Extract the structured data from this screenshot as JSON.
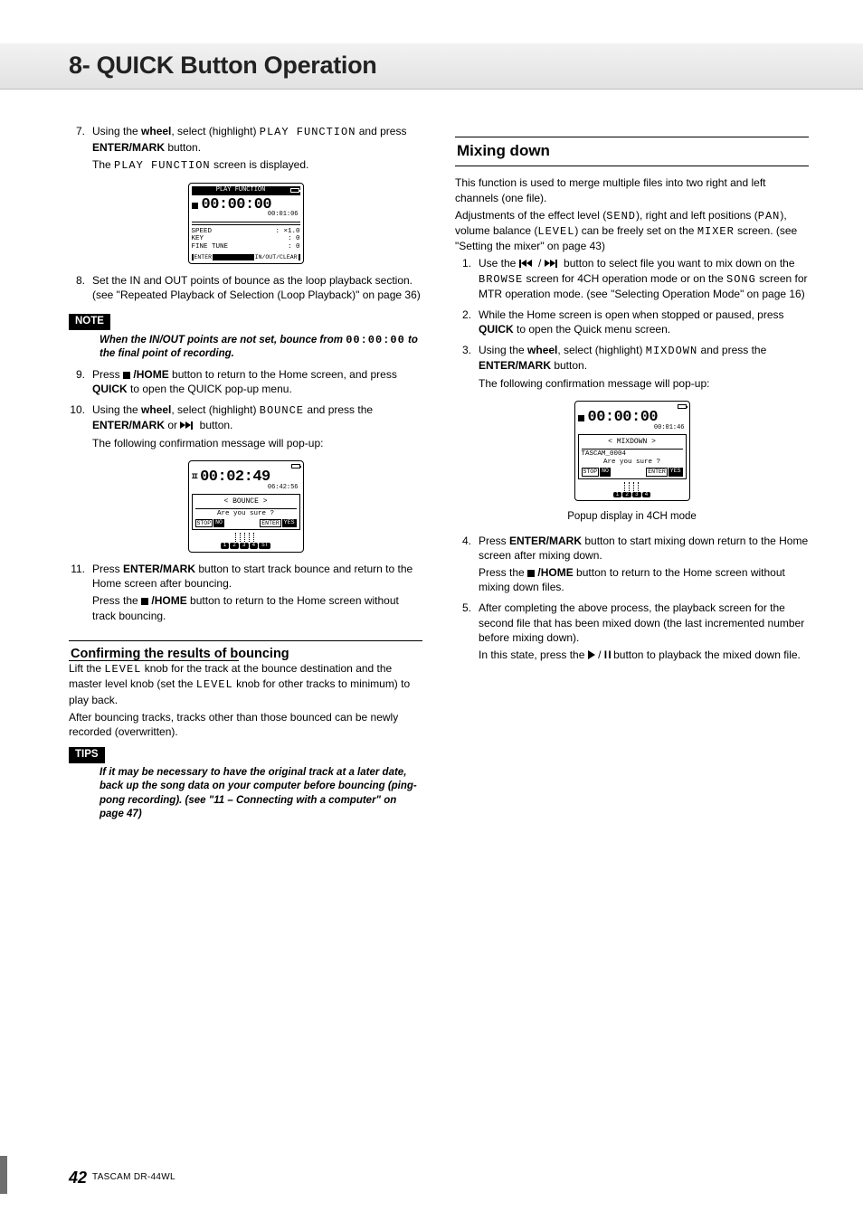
{
  "chapter": {
    "title": "8- QUICK Button Operation"
  },
  "left": {
    "steps_a": [
      {
        "n": "7.",
        "lines": [
          "Using the <b>wheel</b>, select (highlight) <span class='mono'>PLAY FUNCTION</span> and press <b>ENTER/MARK</b> button.",
          "The <span class='mono'>PLAY FUNCTION</span> screen is displayed."
        ]
      }
    ],
    "lcd1": {
      "header": "PLAY FUNCTION",
      "time": "00:00:00",
      "sub": "00:01:06",
      "rows": [
        [
          "SPEED",
          ": ×1.0"
        ],
        [
          "KEY",
          ": 0"
        ],
        [
          "FINE TUNE",
          ": 0"
        ]
      ],
      "footer_left": "ENTER",
      "footer_right": "IN/OUT/CLEAR"
    },
    "steps_b": [
      {
        "n": "8.",
        "lines": [
          "Set the IN and OUT points of bounce as the loop playback section. (see \"Repeated Playback of Selection (Loop Playback)\" on page 36)"
        ]
      }
    ],
    "note_label": "NOTE",
    "note_body": "When the IN/OUT points are not set, bounce from <span class='mono' style='font-style:normal'>00:00:00</span> to the final point of recording.",
    "steps_c": [
      {
        "n": "9.",
        "lines": [
          "Press <span class='stop-icon'></span> <b>/HOME</b> button to return to the Home screen, and press <b>QUICK</b> to open the QUICK pop-up menu."
        ]
      },
      {
        "n": "10.",
        "lines": [
          "Using the <b>wheel</b>, select (highlight) <span class='mono'>BOUNCE</span> and press the <b>ENTER/MARK</b> or <span class='ffwd-icon ffwd-end'><span class='bar'></span></span> button.",
          "The following confirmation message will pop-up:"
        ]
      }
    ],
    "lcd2": {
      "time": "00:02:49",
      "sub": "06:42:56",
      "popup_title": "< BOUNCE >",
      "popup_text": "Are you sure ?",
      "tracks": [
        "1",
        "2",
        "3",
        "4",
        "ST"
      ]
    },
    "steps_d": [
      {
        "n": "11.",
        "lines": [
          "Press <b>ENTER/MARK</b> button to start track bounce and return to the Home screen after bouncing.",
          "Press the <span class='stop-icon'></span> <b>/HOME</b> button to return to the Home screen without track bouncing."
        ]
      }
    ],
    "h3": "Confirming the results of bouncing",
    "para1": "Lift the <span class='mono'>LEVEL</span> knob for the track at the bounce destination and the master level knob (set the <span class='mono'>LEVEL</span> knob for other tracks to minimum) to play back.",
    "para2": "After bouncing tracks, tracks other than those bounced can be newly recorded (overwritten).",
    "tips_label": "TIPS",
    "tips_body": "If it may be necessary to have the original track at a later date, back up the song data on your computer before bouncing (ping-pong recording). (see \"11 – Connecting with a computer\" on page 47)"
  },
  "right": {
    "h2": "Mixing down",
    "intro": "This function is used to merge multiple files into two right and left channels (one file).",
    "adjust": "Adjustments of the effect level (<span class='mono'>SEND</span>), right and left positions (<span class='mono'>PAN</span>), volume balance (<span class='mono'>LEVEL</span>) can be freely set on the <span class='mono'>MIXER</span> screen. (see \"Setting the mixer\" on page 43)",
    "steps": [
      {
        "n": "1.",
        "lines": [
          "Use the <span class='rew-icon rew-start'><span class='bar'></span></span> / <span class='ffwd-icon ffwd-end'><span class='bar'></span></span> button to select file you want to mix down on the <span class='mono'>BROWSE</span> screen for 4CH operation mode or on the <span class='mono'>SONG</span> screen for MTR operation mode. (see \"Selecting Operation Mode\" on page 16)"
        ]
      },
      {
        "n": "2.",
        "lines": [
          "While the Home screen is open when stopped or paused, press <b>QUICK</b> to open the Quick menu screen."
        ]
      },
      {
        "n": "3.",
        "lines": [
          "Using the <b>wheel</b>, select (highlight) <span class='mono'>MIXDOWN</span> and press the <b>ENTER/MARK</b> button.",
          "The following confirmation message will pop-up:"
        ]
      }
    ],
    "lcd": {
      "time": "00:00:00",
      "sub": "00:01:46",
      "popup_title": "< MIXDOWN >",
      "popup_line1": "TASCAM_0004",
      "popup_text": "Are you sure ?",
      "tracks": [
        "1",
        "2",
        "3",
        "4"
      ]
    },
    "caption": "Popup display in 4CH mode",
    "steps2": [
      {
        "n": "4.",
        "lines": [
          "Press <b>ENTER/MARK</b> button to start mixing down return to the Home screen after mixing down.",
          "Press the <span class='stop-icon'></span> <b>/HOME</b> button to return to the Home screen without mixing down files."
        ]
      },
      {
        "n": "5.",
        "lines": [
          "After completing the above process, the playback screen for the second file that has been mixed down (the last incremented number before mixing down).",
          "In this state, press the <span class='play-icon'></span> / <span class='pause-glyph'>I I</span> button to playback the mixed down file."
        ]
      }
    ]
  },
  "footer": {
    "page": "42",
    "model": "TASCAM DR-44WL"
  }
}
